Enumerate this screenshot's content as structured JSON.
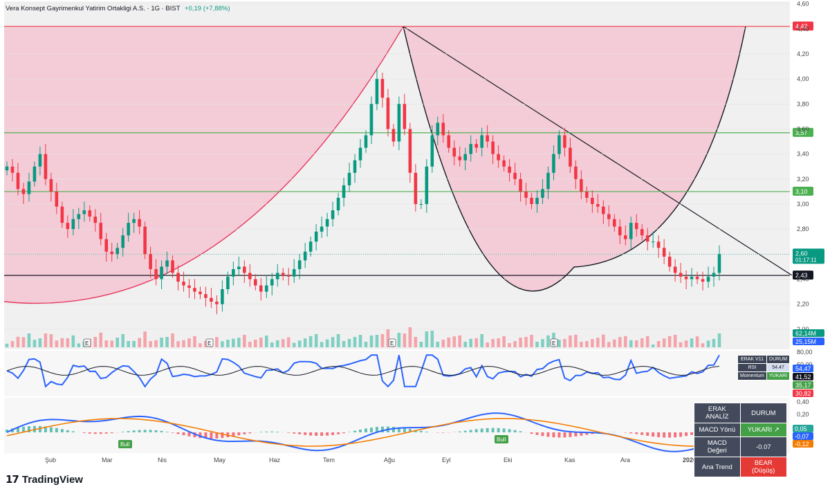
{
  "header": {
    "symbol_line": "Vera Konsept Gayrimenkul Yatirim Ortakligi A.S. · 1G · BIST",
    "change": "+0,19 (+7,88%)"
  },
  "chart_data": {
    "type": "candlestick",
    "price_axis": {
      "ticks": [
        "4,60",
        "4,40",
        "4,20",
        "4,00",
        "3,80",
        "3,60",
        "3,40",
        "3,20",
        "3,00",
        "2,80",
        "2,60",
        "2,40",
        "2,20",
        "2,00"
      ],
      "range": [
        1.85,
        4.62
      ]
    },
    "time_axis": {
      "labels": [
        "Şub",
        "Mar",
        "Nis",
        "May",
        "Haz",
        "Tem",
        "Ağu",
        "Eyl",
        "Eki",
        "Kas",
        "Ara",
        "2026",
        "Şub"
      ]
    },
    "close_series": [
      3.3,
      3.25,
      3.12,
      3.08,
      3.18,
      3.3,
      3.4,
      3.2,
      3.1,
      2.98,
      2.85,
      2.8,
      2.88,
      2.92,
      2.95,
      2.9,
      2.85,
      2.72,
      2.62,
      2.6,
      2.65,
      2.75,
      2.85,
      2.88,
      2.82,
      2.6,
      2.48,
      2.4,
      2.5,
      2.55,
      2.45,
      2.38,
      2.35,
      2.33,
      2.3,
      2.28,
      2.25,
      2.22,
      2.2,
      2.32,
      2.42,
      2.48,
      2.5,
      2.45,
      2.4,
      2.35,
      2.3,
      2.35,
      2.4,
      2.45,
      2.43,
      2.42,
      2.48,
      2.55,
      2.62,
      2.7,
      2.78,
      2.82,
      2.88,
      2.95,
      3.05,
      3.15,
      3.25,
      3.35,
      3.45,
      3.55,
      3.8,
      4.0,
      3.85,
      3.6,
      3.5,
      3.8,
      3.6,
      3.25,
      3.0,
      3.0,
      3.3,
      3.55,
      3.65,
      3.55,
      3.45,
      3.38,
      3.35,
      3.4,
      3.48,
      3.45,
      3.55,
      3.5,
      3.4,
      3.35,
      3.3,
      3.25,
      3.2,
      3.1,
      3.05,
      3.0,
      3.05,
      3.12,
      3.25,
      3.4,
      3.55,
      3.45,
      3.3,
      3.2,
      3.1,
      3.05,
      3.0,
      2.98,
      2.92,
      2.88,
      2.82,
      2.75,
      2.72,
      2.85,
      2.8,
      2.75,
      2.7,
      2.7,
      2.65,
      2.58,
      2.5,
      2.45,
      2.42,
      2.4,
      2.42,
      2.4,
      2.38,
      2.42,
      2.45,
      2.6
    ],
    "horizontal_levels": [
      {
        "value": 4.42,
        "label": "4,42",
        "color": "#f23645"
      },
      {
        "value": 3.57,
        "label": "3,57",
        "color": "#4caf50"
      },
      {
        "value": 3.1,
        "label": "3,10",
        "color": "#4caf50"
      },
      {
        "value": 2.43,
        "label": "2,43",
        "color": "#131722"
      }
    ],
    "last_price": {
      "value": 2.6,
      "label": "2,60",
      "countdown": "01:17:11"
    },
    "volume_labels": [
      "62,14M",
      "25,15M"
    ],
    "earnings_markers": [
      "E",
      "E",
      "E",
      "E",
      "E"
    ],
    "rsi_pane": {
      "labels": [
        "80,00",
        "60,00"
      ],
      "badges": [
        "54,47",
        "41,52",
        "35,17",
        "30,82"
      ]
    },
    "macd_pane": {
      "labels": [
        "0,40",
        "0,20"
      ],
      "badges": [
        "0,05",
        "-0,07",
        "-0,12"
      ],
      "signals": [
        "Bull",
        "Bull"
      ]
    }
  },
  "indicator_table": {
    "title": "ERAK V11",
    "status_header": "DURUM",
    "rows": [
      {
        "key": "RSI",
        "value": "54.47"
      },
      {
        "key": "Momentum",
        "value": "YUKARI"
      }
    ]
  },
  "analysis_table": {
    "header_left": "ERAK ANALİZ",
    "header_right": "DURUM",
    "rows": [
      {
        "key": "MACD Yönü",
        "value": "YUKARI ↗",
        "state": "green"
      },
      {
        "key": "MACD Değeri",
        "value": "-0.07",
        "state": "plain"
      },
      {
        "key": "Ana Trend",
        "value": "BEAR (Düşüş)",
        "state": "red"
      }
    ]
  },
  "brand": {
    "name": "TradingView"
  },
  "colors": {
    "up": "#089981",
    "down": "#f23645",
    "cup_fill": "#f5c6d2",
    "rsi": "#2962ff",
    "macd": "#2962ff",
    "signal": "#f57c00"
  }
}
